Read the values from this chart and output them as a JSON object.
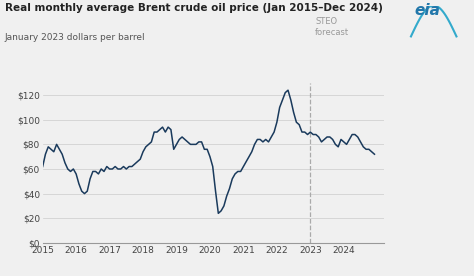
{
  "title": "Real monthly average Brent crude oil price (Jan 2015–Dec 2024)",
  "subtitle": "January 2023 dollars per barrel",
  "steo_label": "STEO\nforecast",
  "bg_color": "#f0f0f0",
  "line_color": "#1a3a5c",
  "forecast_line_color": "#aaaaaa",
  "ylim": [
    0,
    130
  ],
  "yticks": [
    0,
    20,
    40,
    60,
    80,
    100,
    120
  ],
  "ytick_labels": [
    "$0",
    "$20",
    "$40",
    "$60",
    "$80",
    "$100",
    "$120"
  ],
  "forecast_start_year": 2023.0,
  "xlim": [
    2015.0,
    2025.2
  ],
  "xtick_years": [
    2015,
    2016,
    2017,
    2018,
    2019,
    2020,
    2021,
    2022,
    2023,
    2024
  ],
  "dates": [
    2015.0,
    2015.083,
    2015.167,
    2015.25,
    2015.333,
    2015.417,
    2015.5,
    2015.583,
    2015.667,
    2015.75,
    2015.833,
    2015.917,
    2016.0,
    2016.083,
    2016.167,
    2016.25,
    2016.333,
    2016.417,
    2016.5,
    2016.583,
    2016.667,
    2016.75,
    2016.833,
    2016.917,
    2017.0,
    2017.083,
    2017.167,
    2017.25,
    2017.333,
    2017.417,
    2017.5,
    2017.583,
    2017.667,
    2017.75,
    2017.833,
    2017.917,
    2018.0,
    2018.083,
    2018.167,
    2018.25,
    2018.333,
    2018.417,
    2018.5,
    2018.583,
    2018.667,
    2018.75,
    2018.833,
    2018.917,
    2019.0,
    2019.083,
    2019.167,
    2019.25,
    2019.333,
    2019.417,
    2019.5,
    2019.583,
    2019.667,
    2019.75,
    2019.833,
    2019.917,
    2020.0,
    2020.083,
    2020.167,
    2020.25,
    2020.333,
    2020.417,
    2020.5,
    2020.583,
    2020.667,
    2020.75,
    2020.833,
    2020.917,
    2021.0,
    2021.083,
    2021.167,
    2021.25,
    2021.333,
    2021.417,
    2021.5,
    2021.583,
    2021.667,
    2021.75,
    2021.833,
    2021.917,
    2022.0,
    2022.083,
    2022.167,
    2022.25,
    2022.333,
    2022.417,
    2022.5,
    2022.583,
    2022.667,
    2022.75,
    2022.833,
    2022.917,
    2023.0,
    2023.083,
    2023.167,
    2023.25,
    2023.333,
    2023.417,
    2023.5,
    2023.583,
    2023.667,
    2023.75,
    2023.833,
    2023.917,
    2024.0,
    2024.083,
    2024.167,
    2024.25,
    2024.333,
    2024.417,
    2024.5,
    2024.583,
    2024.667,
    2024.75,
    2024.833,
    2024.917
  ],
  "values": [
    62,
    72,
    78,
    76,
    74,
    80,
    76,
    72,
    65,
    60,
    58,
    60,
    56,
    48,
    42,
    40,
    42,
    52,
    58,
    58,
    56,
    60,
    58,
    62,
    60,
    60,
    62,
    60,
    60,
    62,
    60,
    62,
    62,
    64,
    66,
    68,
    74,
    78,
    80,
    82,
    90,
    90,
    92,
    94,
    90,
    94,
    92,
    76,
    80,
    84,
    86,
    84,
    82,
    80,
    80,
    80,
    82,
    82,
    76,
    76,
    70,
    62,
    42,
    24,
    26,
    30,
    38,
    44,
    52,
    56,
    58,
    58,
    62,
    66,
    70,
    74,
    80,
    84,
    84,
    82,
    84,
    82,
    86,
    90,
    98,
    110,
    116,
    122,
    124,
    116,
    106,
    98,
    96,
    90,
    90,
    88,
    90,
    88,
    88,
    86,
    82,
    84,
    86,
    86,
    84,
    80,
    78,
    84,
    82,
    80,
    84,
    88,
    88,
    86,
    82,
    78,
    76,
    76,
    74,
    72
  ]
}
